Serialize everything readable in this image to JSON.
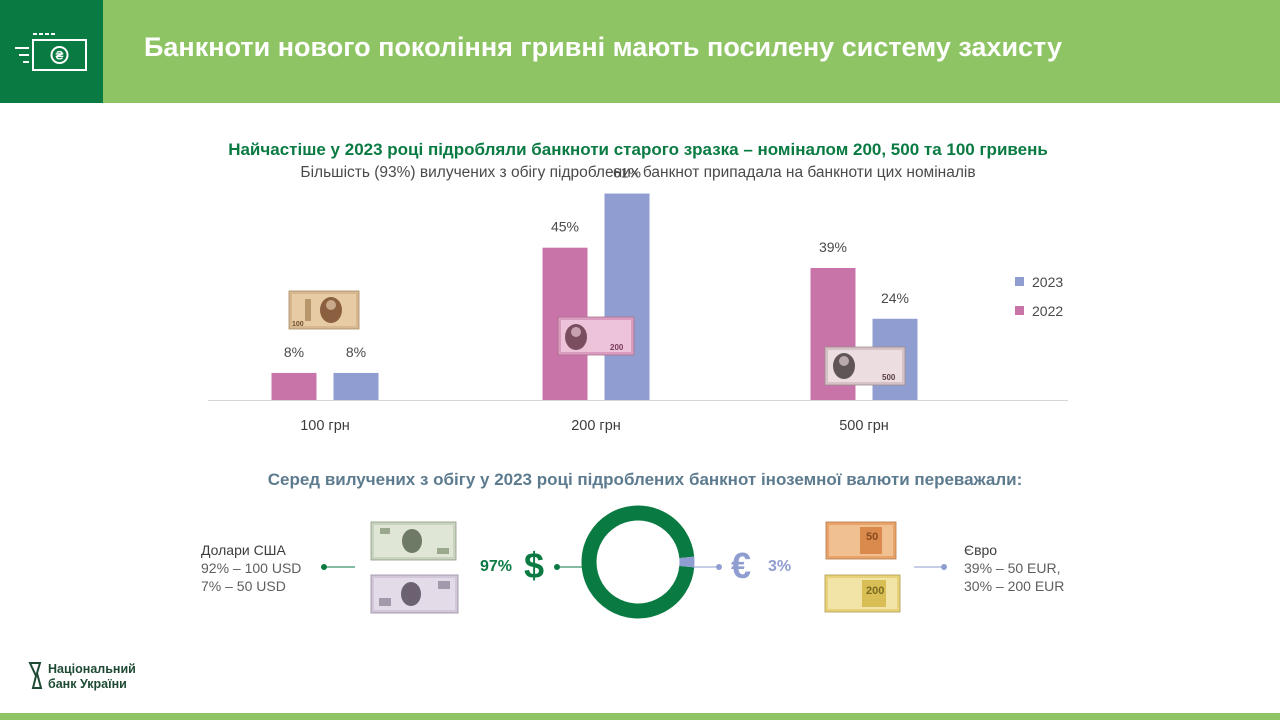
{
  "header": {
    "title": "Банкноти нового покоління гривні мають посилену систему захисту",
    "icon": "banknote-hryvnia-icon"
  },
  "chart_data": {
    "type": "bar",
    "title": "Найчастіше у 2023 році підробляли банкноти старого зразка – номіналом 200, 500 та 100 гривень",
    "subtitle": "Більшість (93%) вилучених з обігу підроблених банкнот припадала на банкноти цих номіналів",
    "categories": [
      "100 грн",
      "200 грн",
      "500 грн"
    ],
    "series": [
      {
        "name": "2022",
        "color": "#c874a8",
        "values": [
          8,
          45,
          39
        ],
        "labels": [
          "8%",
          "45%",
          "39%"
        ]
      },
      {
        "name": "2023",
        "color": "#8f9dd0",
        "values": [
          8,
          61,
          24
        ],
        "labels": [
          "8%",
          "61%",
          "24%"
        ]
      }
    ],
    "legend_order": [
      "2023",
      "2022"
    ],
    "legend_position": "right",
    "ylim": [
      0,
      65
    ],
    "grid": false
  },
  "foreign": {
    "title": "Серед вилучених з обігу у 2023 році підроблених банкнот іноземної валюти переважали:",
    "donut": {
      "type": "pie",
      "slices": [
        {
          "name": "USD",
          "value": 97,
          "color": "#0a7a43"
        },
        {
          "name": "EUR",
          "value": 3,
          "color": "#8f9dd0"
        }
      ]
    },
    "usd": {
      "name": "Долари США",
      "line1": "92% – 100 USD",
      "line2": "7% – 50 USD",
      "pct": "97%",
      "symbol": "$"
    },
    "eur": {
      "name": "Євро",
      "line1": "39% – 50 EUR,",
      "line2": "30% – 200 EUR",
      "pct": "3%",
      "symbol": "€"
    },
    "note_100": "100",
    "note_200": "200",
    "note_500": "500",
    "note_eur50": "50",
    "note_eur200": "200"
  },
  "logo": {
    "line1": "Національний",
    "line2": "банк України"
  },
  "colors": {
    "dark_green": "#0a7a43",
    "light_green": "#8fc465",
    "pink": "#c874a8",
    "lavender": "#8f9dd0"
  }
}
